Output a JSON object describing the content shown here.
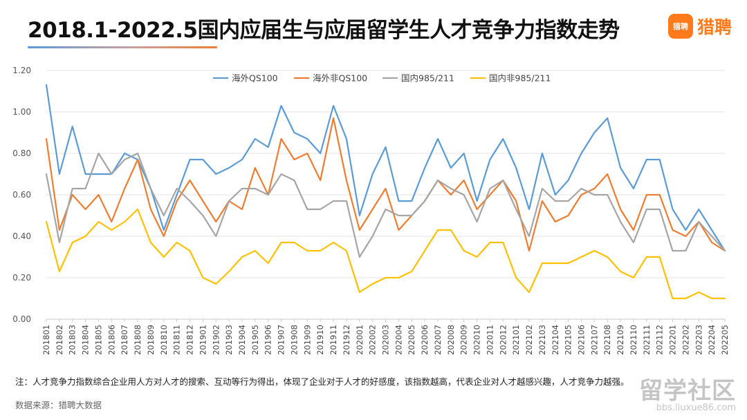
{
  "page": {
    "title": "2018.1-2022.5国内应届生与应届留学生人才竞争力指数走势",
    "note": "注：人才竞争力指数综合企业用人方对人才的搜索、互动等行为得出，体现了企业对于人才的好感度，该指数越高，代表企业对人才越感兴趣，人才竞争力越强。",
    "source": "数据来源：猎聘大数据",
    "logo": {
      "icon_text": "猎聘",
      "text": "猎聘",
      "color": "#ff7a1a"
    },
    "watermark": {
      "main": "留学社区",
      "sub": "bbs.liuxue86.com"
    }
  },
  "chart_data": {
    "type": "line",
    "title": "2018.1-2022.5国内应届生与应届留学生人才竞争力指数走势",
    "xlabel": "",
    "ylabel": "",
    "ylim": [
      0,
      1.2
    ],
    "yticks": [
      "0.00",
      "0.20",
      "0.40",
      "0.60",
      "0.80",
      "1.00",
      "1.20"
    ],
    "grid": true,
    "legend_position": "top",
    "x": [
      "201801",
      "201802",
      "201803",
      "201804",
      "201805",
      "201806",
      "201807",
      "201808",
      "201809",
      "201810",
      "201811",
      "201812",
      "201901",
      "201902",
      "201903",
      "201904",
      "201905",
      "201906",
      "201907",
      "201908",
      "201909",
      "201910",
      "201911",
      "201912",
      "202001",
      "202002",
      "202003",
      "202004",
      "202005",
      "202006",
      "202007",
      "202008",
      "202009",
      "202010",
      "202011",
      "202012",
      "202101",
      "202102",
      "202103",
      "202104",
      "202105",
      "202106",
      "202107",
      "202108",
      "202109",
      "202110",
      "202111",
      "202112",
      "202201",
      "202202",
      "202203",
      "202204",
      "202205"
    ],
    "series": [
      {
        "name": "海外QS100",
        "color": "#5b9bd5",
        "values": [
          1.13,
          0.7,
          0.93,
          0.7,
          0.7,
          0.7,
          0.8,
          0.77,
          0.63,
          0.43,
          0.6,
          0.77,
          0.77,
          0.7,
          0.73,
          0.77,
          0.87,
          0.83,
          1.03,
          0.9,
          0.87,
          0.8,
          1.03,
          0.87,
          0.5,
          0.7,
          0.83,
          0.57,
          0.57,
          0.73,
          0.87,
          0.73,
          0.8,
          0.57,
          0.77,
          0.87,
          0.73,
          0.53,
          0.8,
          0.6,
          0.67,
          0.8,
          0.9,
          0.97,
          0.73,
          0.63,
          0.77,
          0.77,
          0.53,
          0.43,
          0.53,
          0.43,
          0.33
        ]
      },
      {
        "name": "海外非QS100",
        "color": "#ed7d31",
        "values": [
          0.87,
          0.43,
          0.6,
          0.53,
          0.6,
          0.47,
          0.63,
          0.77,
          0.53,
          0.4,
          0.57,
          0.67,
          0.57,
          0.47,
          0.57,
          0.53,
          0.73,
          0.6,
          0.87,
          0.77,
          0.8,
          0.67,
          0.97,
          0.67,
          0.43,
          0.53,
          0.63,
          0.43,
          0.5,
          0.57,
          0.67,
          0.6,
          0.67,
          0.53,
          0.6,
          0.67,
          0.57,
          0.33,
          0.57,
          0.47,
          0.5,
          0.6,
          0.63,
          0.7,
          0.53,
          0.43,
          0.6,
          0.6,
          0.43,
          0.4,
          0.47,
          0.37,
          0.33
        ]
      },
      {
        "name": "国内985/211",
        "color": "#a5a5a5",
        "values": [
          0.7,
          0.37,
          0.63,
          0.63,
          0.8,
          0.7,
          0.77,
          0.8,
          0.63,
          0.5,
          0.63,
          0.57,
          0.5,
          0.4,
          0.57,
          0.63,
          0.63,
          0.6,
          0.7,
          0.67,
          0.53,
          0.53,
          0.57,
          0.57,
          0.3,
          0.4,
          0.53,
          0.5,
          0.5,
          0.57,
          0.67,
          0.63,
          0.6,
          0.47,
          0.63,
          0.67,
          0.53,
          0.4,
          0.63,
          0.57,
          0.57,
          0.63,
          0.6,
          0.6,
          0.47,
          0.37,
          0.53,
          0.53,
          0.33,
          0.33,
          0.47,
          0.4,
          0.33
        ]
      },
      {
        "name": "国内非985/211",
        "color": "#ffc000",
        "values": [
          0.47,
          0.23,
          0.37,
          0.4,
          0.47,
          0.43,
          0.47,
          0.53,
          0.37,
          0.3,
          0.37,
          0.33,
          0.2,
          0.17,
          0.23,
          0.3,
          0.33,
          0.27,
          0.37,
          0.37,
          0.33,
          0.33,
          0.37,
          0.33,
          0.13,
          0.17,
          0.2,
          0.2,
          0.23,
          0.33,
          0.43,
          0.43,
          0.33,
          0.3,
          0.37,
          0.37,
          0.2,
          0.13,
          0.27,
          0.27,
          0.27,
          0.3,
          0.33,
          0.3,
          0.23,
          0.2,
          0.3,
          0.3,
          0.1,
          0.1,
          0.13,
          0.1,
          0.1
        ]
      }
    ]
  }
}
